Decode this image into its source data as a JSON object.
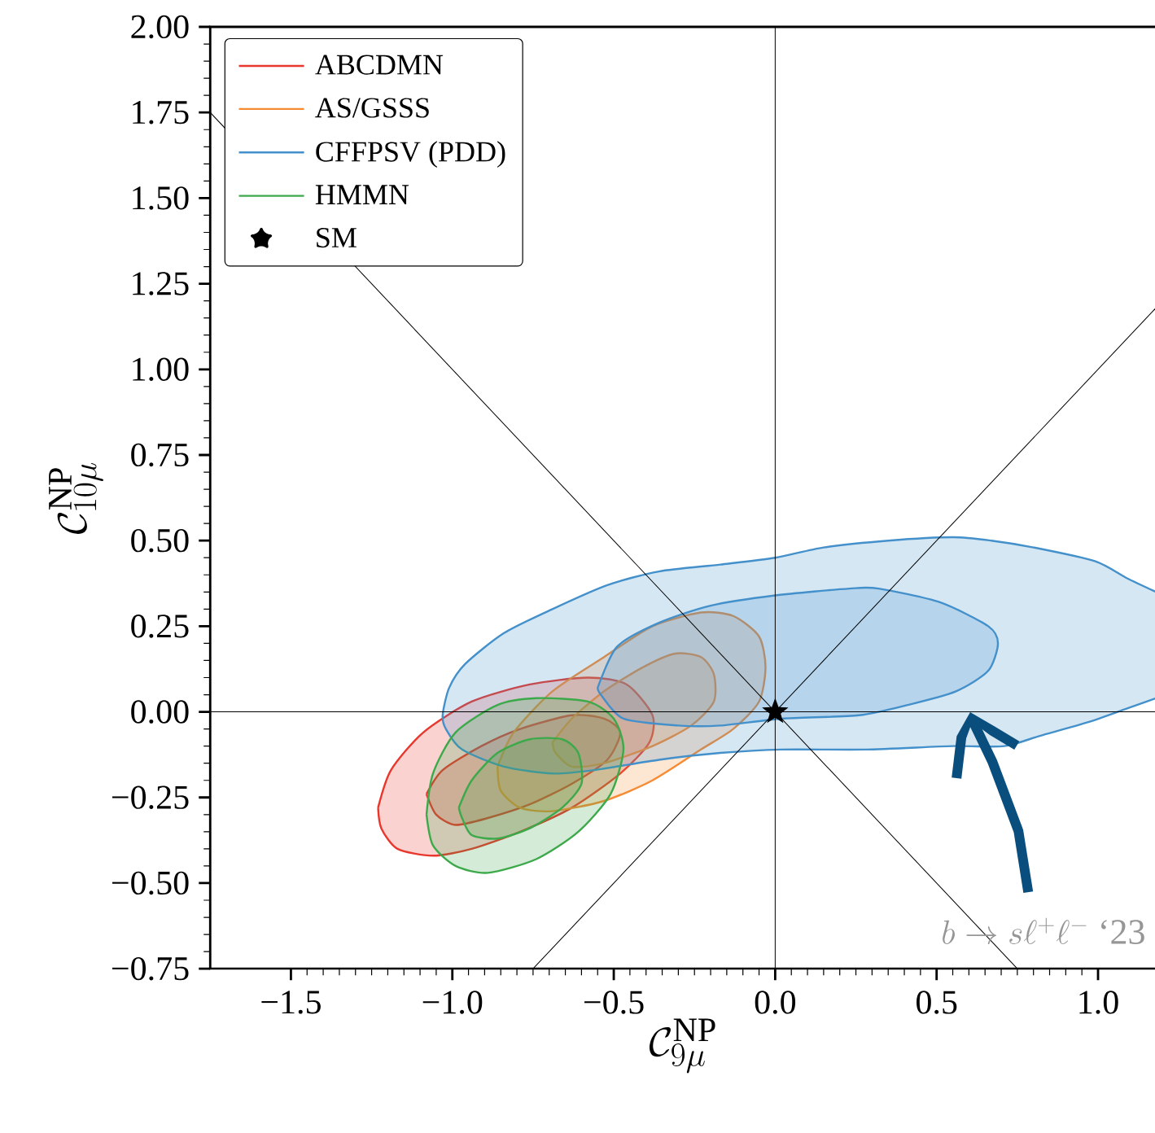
{
  "chart_data": {
    "type": "area",
    "xlabel": "\\mathcal{C}_{9\\mu}^{\\mathrm{NP}}",
    "ylabel": "\\mathcal{C}_{10\\mu}^{\\mathrm{NP}}",
    "annotations": [
      "b \\to s\\ell^+\\ell^-\\ \\mathrm{`23}"
    ],
    "xlim": [
      -1.75,
      1.18
    ],
    "ylim": [
      -0.75,
      2.0
    ],
    "xticks": [
      {
        "value": -1.5,
        "label": "−1.5"
      },
      {
        "value": -1.0,
        "label": "−1.0"
      },
      {
        "value": -0.5,
        "label": "−0.5"
      },
      {
        "value": 0,
        "label": "0.0"
      },
      {
        "value": 0.5,
        "label": "0.5"
      },
      {
        "value": 1.0,
        "label": "1.0"
      }
    ],
    "yticks": [
      {
        "value": -0.75,
        "label": "−0.75"
      },
      {
        "value": -0.5,
        "label": "−0.50"
      },
      {
        "value": -0.25,
        "label": "−0.25"
      },
      {
        "value": 0,
        "label": "0.00"
      },
      {
        "value": 0.25,
        "label": "0.25"
      },
      {
        "value": 0.5,
        "label": "0.50"
      },
      {
        "value": 0.75,
        "label": "0.75"
      },
      {
        "value": 1.0,
        "label": "1.00"
      },
      {
        "value": 1.25,
        "label": "1.25"
      },
      {
        "value": 1.5,
        "label": "1.50"
      },
      {
        "value": 1.75,
        "label": "1.75"
      },
      {
        "value": 2.0,
        "label": "2.00"
      }
    ],
    "legend": "top left",
    "series": [
      {
        "name": "ABCDMN",
        "color": "#e8372c",
        "x": [
          -1.23,
          -1.19,
          -1.09,
          -0.94,
          -0.76,
          -0.58,
          -0.46,
          -0.38,
          -0.39,
          -0.48,
          -0.63,
          -0.79,
          -0.94,
          -1.06,
          -1.17,
          -1.22
        ],
        "values": [
          -0.28,
          -0.17,
          -0.06,
          0.03,
          0.08,
          0.1,
          0.08,
          -0.01,
          -0.09,
          -0.18,
          -0.28,
          -0.35,
          -0.4,
          -0.42,
          -0.4,
          -0.34
        ]
      },
      {
        "color": "#e8372c",
        "x": [
          -1.08,
          -1.03,
          -0.91,
          -0.79,
          -0.63,
          -0.53,
          -0.48,
          -0.52,
          -0.63,
          -0.76,
          -0.89,
          -0.99,
          -1.05
        ],
        "values": [
          -0.24,
          -0.17,
          -0.1,
          -0.05,
          -0.01,
          -0.02,
          -0.06,
          -0.14,
          -0.21,
          -0.27,
          -0.31,
          -0.33,
          -0.3
        ]
      },
      {
        "name": "AS/GSSS",
        "color": "#f68b33",
        "x": [
          -0.86,
          -0.81,
          -0.69,
          -0.53,
          -0.38,
          -0.23,
          -0.13,
          -0.05,
          -0.03,
          -0.05,
          -0.13,
          -0.23,
          -0.38,
          -0.53,
          -0.69,
          -0.79,
          -0.85
        ],
        "values": [
          -0.16,
          -0.06,
          0.06,
          0.16,
          0.25,
          0.29,
          0.28,
          0.22,
          0.13,
          0.03,
          -0.05,
          -0.11,
          -0.2,
          -0.26,
          -0.29,
          -0.28,
          -0.23
        ]
      },
      {
        "color": "#f68b33",
        "x": [
          -0.69,
          -0.63,
          -0.53,
          -0.41,
          -0.31,
          -0.23,
          -0.19,
          -0.19,
          -0.26,
          -0.38,
          -0.53,
          -0.63,
          -0.68
        ],
        "values": [
          -0.09,
          -0.02,
          0.06,
          0.13,
          0.17,
          0.16,
          0.11,
          0.03,
          -0.04,
          -0.1,
          -0.15,
          -0.16,
          -0.12
        ]
      },
      {
        "name": "CFFPSV (PDD)",
        "color": "#4390cb",
        "x": [
          1.18,
          1.09,
          0.99,
          0.8,
          0.67,
          0.55,
          0.35,
          0.15,
          0.0,
          -0.17,
          -0.36,
          -0.52,
          -0.69,
          -0.84,
          -0.96,
          -1.01,
          -1.03,
          -1.02,
          -0.97,
          -0.84,
          -0.69,
          -0.56,
          -0.36,
          -0.17,
          0.02,
          0.28,
          0.55,
          0.71,
          0.82,
          0.97,
          1.09,
          1.18
        ],
        "values": [
          0.35,
          0.39,
          0.44,
          0.48,
          0.5,
          0.51,
          0.5,
          0.48,
          0.45,
          0.43,
          0.41,
          0.37,
          0.3,
          0.23,
          0.14,
          0.07,
          -0.01,
          -0.05,
          -0.11,
          -0.16,
          -0.18,
          -0.17,
          -0.14,
          -0.12,
          -0.11,
          -0.11,
          -0.1,
          -0.1,
          -0.07,
          -0.03,
          0.01,
          0.04
        ]
      },
      {
        "color": "#4390cb",
        "x": [
          -0.55,
          -0.49,
          -0.36,
          -0.2,
          0.0,
          0.23,
          0.32,
          0.51,
          0.66,
          0.69,
          0.66,
          0.56,
          0.41,
          0.26,
          0.02,
          -0.17,
          -0.3,
          -0.47,
          -0.54
        ],
        "values": [
          0.07,
          0.19,
          0.26,
          0.31,
          0.34,
          0.36,
          0.36,
          0.32,
          0.25,
          0.2,
          0.12,
          0.06,
          0.02,
          -0.01,
          -0.02,
          -0.04,
          -0.04,
          -0.02,
          0.05
        ]
      },
      {
        "name": "HMMN",
        "color": "#3ca94a",
        "x": [
          -1.08,
          -1.06,
          -0.99,
          -0.86,
          -0.74,
          -0.58,
          -0.5,
          -0.47,
          -0.51,
          -0.61,
          -0.74,
          -0.89,
          -0.99,
          -1.06
        ],
        "values": [
          -0.3,
          -0.18,
          -0.06,
          0.02,
          0.04,
          0.03,
          -0.02,
          -0.11,
          -0.24,
          -0.35,
          -0.43,
          -0.47,
          -0.45,
          -0.39
        ]
      },
      {
        "color": "#3ca94a",
        "x": [
          -0.98,
          -0.94,
          -0.86,
          -0.76,
          -0.66,
          -0.61,
          -0.6,
          -0.66,
          -0.76,
          -0.86,
          -0.94,
          -0.97
        ],
        "values": [
          -0.28,
          -0.2,
          -0.12,
          -0.08,
          -0.08,
          -0.12,
          -0.21,
          -0.28,
          -0.34,
          -0.37,
          -0.36,
          -0.31
        ]
      },
      {
        "type": "line",
        "color": "#000000",
        "x": [
          0,
          0
        ],
        "values": [
          -0.75,
          2.0
        ]
      },
      {
        "type": "line",
        "color": "#000000",
        "x": [
          -1.75,
          1.18
        ],
        "values": [
          0,
          0
        ]
      },
      {
        "type": "line",
        "color": "#000000",
        "x": [
          -1.75,
          0.75
        ],
        "values": [
          1.75,
          -0.75
        ]
      },
      {
        "type": "line",
        "color": "#000000",
        "x": [
          -0.75,
          1.18
        ],
        "values": [
          -0.75,
          1.18
        ]
      },
      {
        "name": "SM",
        "type": "scatter",
        "color": "#000000",
        "marker": "star",
        "x": [
          0
        ],
        "values": [
          0
        ]
      }
    ]
  }
}
